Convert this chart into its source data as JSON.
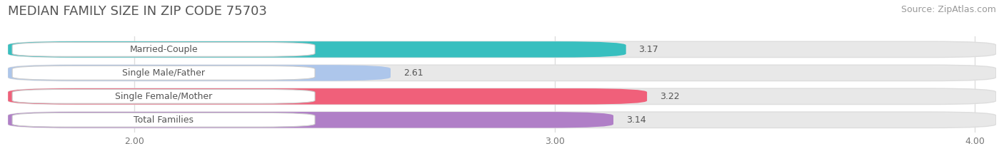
{
  "title": "MEDIAN FAMILY SIZE IN ZIP CODE 75703",
  "source": "Source: ZipAtlas.com",
  "categories": [
    "Married-Couple",
    "Single Male/Father",
    "Single Female/Mother",
    "Total Families"
  ],
  "values": [
    3.17,
    2.61,
    3.22,
    3.14
  ],
  "bar_colors": [
    "#38bfbf",
    "#adc6eb",
    "#f0607a",
    "#b07fc7"
  ],
  "xlim": [
    1.7,
    4.05
  ],
  "xstart": 1.7,
  "xticks": [
    2.0,
    3.0,
    4.0
  ],
  "xtick_labels": [
    "2.00",
    "3.00",
    "4.00"
  ],
  "background_color": "#ffffff",
  "bar_background_color": "#e8e8e8",
  "title_fontsize": 13,
  "source_fontsize": 9,
  "label_fontsize": 9,
  "value_fontsize": 9,
  "tick_fontsize": 9
}
